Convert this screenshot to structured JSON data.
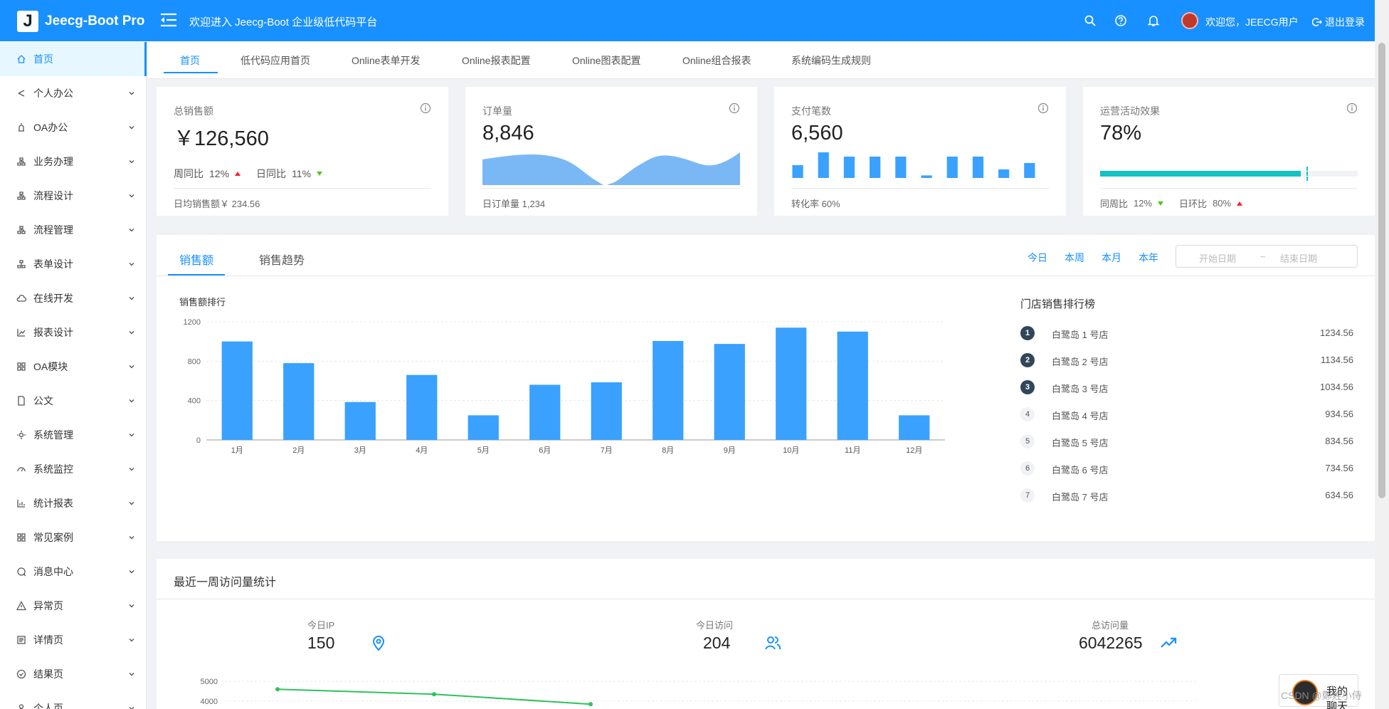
{
  "header": {
    "logo_letter": "J",
    "app_title": "Jeecg-Boot Pro",
    "welcome_banner": "欢迎进入 Jeecg-Boot 企业级低代码平台",
    "user_greeting": "欢迎您，JEECG用户",
    "logout_label": "退出登录",
    "brand_color": "#1890ff"
  },
  "sidebar": {
    "items": [
      {
        "label": "首页",
        "icon": "home-icon"
      },
      {
        "label": "个人办公",
        "icon": "share-icon"
      },
      {
        "label": "OA办公",
        "icon": "alarm-icon"
      },
      {
        "label": "业务办理",
        "icon": "cluster-icon"
      },
      {
        "label": "流程设计",
        "icon": "cluster-icon"
      },
      {
        "label": "流程管理",
        "icon": "cluster-icon"
      },
      {
        "label": "表单设计",
        "icon": "apartment-icon"
      },
      {
        "label": "在线开发",
        "icon": "cloud-icon"
      },
      {
        "label": "报表设计",
        "icon": "area-chart-icon"
      },
      {
        "label": "OA模块",
        "icon": "appstore-icon"
      },
      {
        "label": "公文",
        "icon": "file-icon"
      },
      {
        "label": "系统管理",
        "icon": "setting-icon"
      },
      {
        "label": "系统监控",
        "icon": "dashboard-icon"
      },
      {
        "label": "统计报表",
        "icon": "bar-chart-icon"
      },
      {
        "label": "常见案例",
        "icon": "appstore-icon"
      },
      {
        "label": "消息中心",
        "icon": "message-icon"
      },
      {
        "label": "异常页",
        "icon": "warning-icon"
      },
      {
        "label": "详情页",
        "icon": "profile-icon"
      },
      {
        "label": "结果页",
        "icon": "check-circle-icon"
      },
      {
        "label": "个人页",
        "icon": "user-icon"
      }
    ]
  },
  "tabs": [
    "首页",
    "低代码应用首页",
    "Online表单开发",
    "Online报表配置",
    "Online图表配置",
    "Online组合报表",
    "系统编码生成规则"
  ],
  "cards": {
    "total_sales": {
      "title": "总销售额",
      "value": "￥126,560",
      "wow_label": "周同比",
      "wow_value": "12%",
      "dod_label": "日同比",
      "dod_value": "11%",
      "footer": "日均销售额￥ 234.56"
    },
    "orders": {
      "title": "订单量",
      "value": "8,846",
      "footer": "日订单量 1,234"
    },
    "payments": {
      "title": "支付笔数",
      "value": "6,560",
      "footer": "转化率 60%",
      "bars": [
        3,
        6,
        5,
        5,
        5,
        0.6,
        5,
        5,
        2,
        3.5
      ]
    },
    "campaign": {
      "title": "运营活动效果",
      "value": "78%",
      "progress": 0.78,
      "target": 0.8,
      "wow_label": "同周比",
      "wow_value": "12%",
      "dod_label": "日环比",
      "dod_value": "80%",
      "progress_color": "#13c2c2"
    }
  },
  "sales_panel": {
    "tabs": [
      "销售额",
      "销售趋势"
    ],
    "ranges": [
      "今日",
      "本周",
      "本月",
      "本年"
    ],
    "start_placeholder": "开始日期",
    "range_sep": "~",
    "end_placeholder": "结束日期",
    "chart_title": "销售额排行",
    "rank_title": "门店销售排行榜",
    "ranking": [
      {
        "rank": "1",
        "name": "白鹭岛 1 号店",
        "value": "1234.56"
      },
      {
        "rank": "2",
        "name": "白鹭岛 2 号店",
        "value": "1134.56"
      },
      {
        "rank": "3",
        "name": "白鹭岛 3 号店",
        "value": "1034.56"
      },
      {
        "rank": "4",
        "name": "白鹭岛 4 号店",
        "value": "934.56"
      },
      {
        "rank": "5",
        "name": "白鹭岛 5 号店",
        "value": "834.56"
      },
      {
        "rank": "6",
        "name": "白鹭岛 6 号店",
        "value": "734.56"
      },
      {
        "rank": "7",
        "name": "白鹭岛 7 号店",
        "value": "634.56"
      }
    ]
  },
  "visits": {
    "title": "最近一周访问量统计",
    "ip_label": "今日IP",
    "ip_value": "150",
    "visit_label": "今日访问",
    "visit_value": "204",
    "total_label": "总访问量",
    "total_value": "6042265"
  },
  "chat_widget": {
    "label": "我的聊天"
  },
  "watermark": "CSDN @鄭姓小侍",
  "chart_data": [
    {
      "type": "bar",
      "title": "销售额排行",
      "categories": [
        "1月",
        "2月",
        "3月",
        "4月",
        "5月",
        "6月",
        "7月",
        "8月",
        "9月",
        "10月",
        "11月",
        "12月"
      ],
      "values": [
        1000,
        780,
        385,
        660,
        250,
        560,
        585,
        1005,
        975,
        1140,
        1100,
        250
      ],
      "ylim": [
        0,
        1200
      ],
      "yticks": [
        0,
        400,
        800,
        1200
      ],
      "color": "#3aa1ff"
    },
    {
      "type": "line",
      "title": "最近一周访问量统计",
      "x": [
        0,
        1,
        2
      ],
      "values": [
        4600,
        4350,
        3850
      ],
      "ylim": [
        3800,
        5200
      ],
      "yticks": [
        4000,
        5000
      ],
      "color": "#2fc25b"
    }
  ]
}
